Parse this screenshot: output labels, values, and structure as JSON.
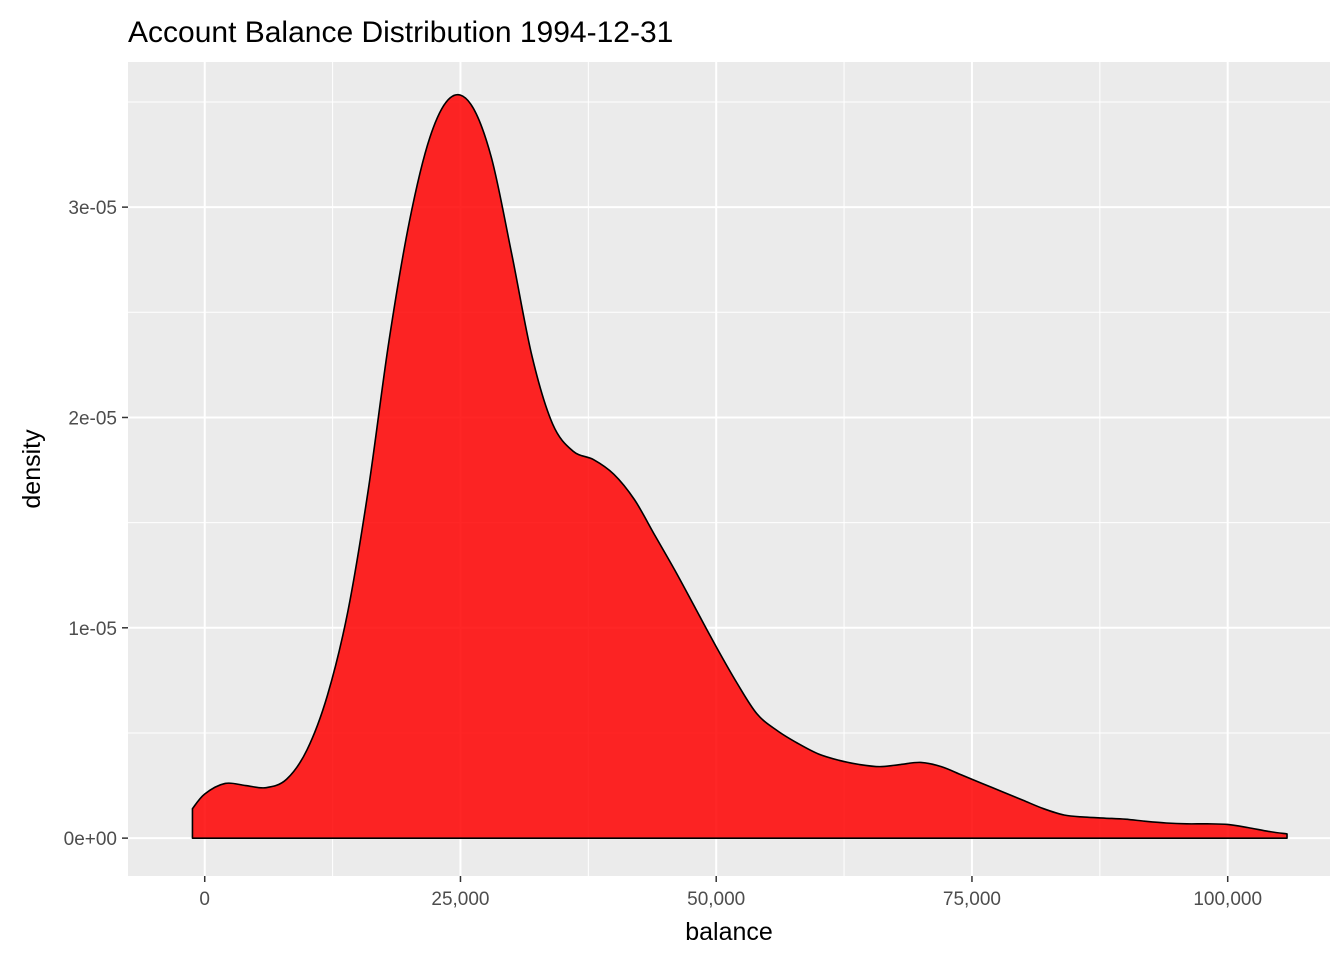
{
  "chart_data": {
    "type": "area",
    "title": "Account Balance Distribution 1994-12-31",
    "xlabel": "balance",
    "ylabel": "density",
    "xlim": [
      -7500,
      110000
    ],
    "ylim": [
      -1.8e-06,
      3.69e-05
    ],
    "x_ticks": [
      0,
      25000,
      50000,
      75000,
      100000
    ],
    "x_tick_labels": [
      "0",
      "25,000",
      "50,000",
      "75,000",
      "100,000"
    ],
    "y_ticks": [
      0,
      1e-05,
      2e-05,
      3e-05
    ],
    "y_tick_labels": [
      "0e+00",
      "1e-05",
      "2e-05",
      "3e-05"
    ],
    "grid": true,
    "background": "#ebebeb",
    "grid_color": "#ffffff",
    "fill_color": "#ff0000",
    "fill_opacity": 0.85,
    "line_color": "#000000",
    "series": [
      {
        "x": [
          -1200,
          0,
          2000,
          4000,
          6000,
          8000,
          10000,
          12000,
          14000,
          16000,
          18000,
          20000,
          22000,
          24000,
          26000,
          28000,
          30000,
          32000,
          34000,
          36000,
          38000,
          40000,
          42000,
          44000,
          46000,
          48000,
          50000,
          52000,
          54000,
          56000,
          58000,
          60000,
          62000,
          64000,
          66000,
          68000,
          70000,
          72000,
          74000,
          76000,
          78000,
          80000,
          82000,
          84000,
          86000,
          88000,
          90000,
          92000,
          94000,
          96000,
          98000,
          100000,
          102000,
          104000,
          105800
        ],
        "y": [
          1.4e-06,
          2.1e-06,
          2.6e-06,
          2.5e-06,
          2.4e-06,
          2.8e-06,
          4.2e-06,
          6.8e-06,
          1.08e-05,
          1.66e-05,
          2.36e-05,
          2.93e-05,
          3.33e-05,
          3.52e-05,
          3.49e-05,
          3.24e-05,
          2.78e-05,
          2.29e-05,
          1.97e-05,
          1.84e-05,
          1.8e-05,
          1.73e-05,
          1.61e-05,
          1.44e-05,
          1.27e-05,
          1.09e-05,
          9.1e-06,
          7.4e-06,
          5.9e-06,
          5.1e-06,
          4.5e-06,
          4e-06,
          3.7e-06,
          3.5e-06,
          3.4e-06,
          3.5e-06,
          3.6e-06,
          3.4e-06,
          3e-06,
          2.6e-06,
          2.2e-06,
          1.8e-06,
          1.4e-06,
          1.1e-06,
          1e-06,
          9.5e-07,
          9e-07,
          8e-07,
          7.2e-07,
          6.8e-07,
          6.8e-07,
          6.5e-07,
          5e-07,
          3.2e-07,
          2e-07
        ]
      }
    ]
  }
}
